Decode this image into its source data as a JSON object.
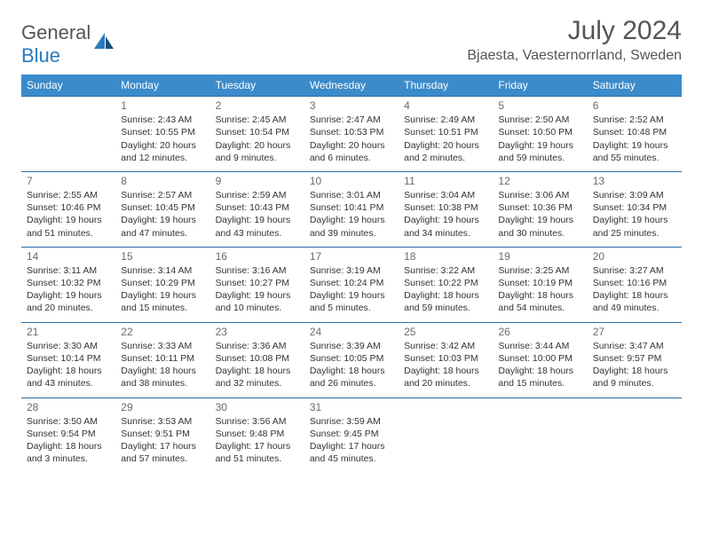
{
  "brand": {
    "part1": "General",
    "part2": "Blue"
  },
  "title": "July 2024",
  "location": "Bjaesta, Vaesternorrland, Sweden",
  "colors": {
    "header_bg": "#3b8bca",
    "header_text": "#ffffff",
    "cell_border": "#2a6ca8",
    "body_text": "#333333",
    "muted_text": "#6a6a6a",
    "brand_gray": "#555555",
    "brand_blue": "#2a7bbf"
  },
  "weekdays": [
    "Sunday",
    "Monday",
    "Tuesday",
    "Wednesday",
    "Thursday",
    "Friday",
    "Saturday"
  ],
  "weeks": [
    [
      null,
      {
        "day": "1",
        "sunrise": "Sunrise: 2:43 AM",
        "sunset": "Sunset: 10:55 PM",
        "daylight1": "Daylight: 20 hours",
        "daylight2": "and 12 minutes."
      },
      {
        "day": "2",
        "sunrise": "Sunrise: 2:45 AM",
        "sunset": "Sunset: 10:54 PM",
        "daylight1": "Daylight: 20 hours",
        "daylight2": "and 9 minutes."
      },
      {
        "day": "3",
        "sunrise": "Sunrise: 2:47 AM",
        "sunset": "Sunset: 10:53 PM",
        "daylight1": "Daylight: 20 hours",
        "daylight2": "and 6 minutes."
      },
      {
        "day": "4",
        "sunrise": "Sunrise: 2:49 AM",
        "sunset": "Sunset: 10:51 PM",
        "daylight1": "Daylight: 20 hours",
        "daylight2": "and 2 minutes."
      },
      {
        "day": "5",
        "sunrise": "Sunrise: 2:50 AM",
        "sunset": "Sunset: 10:50 PM",
        "daylight1": "Daylight: 19 hours",
        "daylight2": "and 59 minutes."
      },
      {
        "day": "6",
        "sunrise": "Sunrise: 2:52 AM",
        "sunset": "Sunset: 10:48 PM",
        "daylight1": "Daylight: 19 hours",
        "daylight2": "and 55 minutes."
      }
    ],
    [
      {
        "day": "7",
        "sunrise": "Sunrise: 2:55 AM",
        "sunset": "Sunset: 10:46 PM",
        "daylight1": "Daylight: 19 hours",
        "daylight2": "and 51 minutes."
      },
      {
        "day": "8",
        "sunrise": "Sunrise: 2:57 AM",
        "sunset": "Sunset: 10:45 PM",
        "daylight1": "Daylight: 19 hours",
        "daylight2": "and 47 minutes."
      },
      {
        "day": "9",
        "sunrise": "Sunrise: 2:59 AM",
        "sunset": "Sunset: 10:43 PM",
        "daylight1": "Daylight: 19 hours",
        "daylight2": "and 43 minutes."
      },
      {
        "day": "10",
        "sunrise": "Sunrise: 3:01 AM",
        "sunset": "Sunset: 10:41 PM",
        "daylight1": "Daylight: 19 hours",
        "daylight2": "and 39 minutes."
      },
      {
        "day": "11",
        "sunrise": "Sunrise: 3:04 AM",
        "sunset": "Sunset: 10:38 PM",
        "daylight1": "Daylight: 19 hours",
        "daylight2": "and 34 minutes."
      },
      {
        "day": "12",
        "sunrise": "Sunrise: 3:06 AM",
        "sunset": "Sunset: 10:36 PM",
        "daylight1": "Daylight: 19 hours",
        "daylight2": "and 30 minutes."
      },
      {
        "day": "13",
        "sunrise": "Sunrise: 3:09 AM",
        "sunset": "Sunset: 10:34 PM",
        "daylight1": "Daylight: 19 hours",
        "daylight2": "and 25 minutes."
      }
    ],
    [
      {
        "day": "14",
        "sunrise": "Sunrise: 3:11 AM",
        "sunset": "Sunset: 10:32 PM",
        "daylight1": "Daylight: 19 hours",
        "daylight2": "and 20 minutes."
      },
      {
        "day": "15",
        "sunrise": "Sunrise: 3:14 AM",
        "sunset": "Sunset: 10:29 PM",
        "daylight1": "Daylight: 19 hours",
        "daylight2": "and 15 minutes."
      },
      {
        "day": "16",
        "sunrise": "Sunrise: 3:16 AM",
        "sunset": "Sunset: 10:27 PM",
        "daylight1": "Daylight: 19 hours",
        "daylight2": "and 10 minutes."
      },
      {
        "day": "17",
        "sunrise": "Sunrise: 3:19 AM",
        "sunset": "Sunset: 10:24 PM",
        "daylight1": "Daylight: 19 hours",
        "daylight2": "and 5 minutes."
      },
      {
        "day": "18",
        "sunrise": "Sunrise: 3:22 AM",
        "sunset": "Sunset: 10:22 PM",
        "daylight1": "Daylight: 18 hours",
        "daylight2": "and 59 minutes."
      },
      {
        "day": "19",
        "sunrise": "Sunrise: 3:25 AM",
        "sunset": "Sunset: 10:19 PM",
        "daylight1": "Daylight: 18 hours",
        "daylight2": "and 54 minutes."
      },
      {
        "day": "20",
        "sunrise": "Sunrise: 3:27 AM",
        "sunset": "Sunset: 10:16 PM",
        "daylight1": "Daylight: 18 hours",
        "daylight2": "and 49 minutes."
      }
    ],
    [
      {
        "day": "21",
        "sunrise": "Sunrise: 3:30 AM",
        "sunset": "Sunset: 10:14 PM",
        "daylight1": "Daylight: 18 hours",
        "daylight2": "and 43 minutes."
      },
      {
        "day": "22",
        "sunrise": "Sunrise: 3:33 AM",
        "sunset": "Sunset: 10:11 PM",
        "daylight1": "Daylight: 18 hours",
        "daylight2": "and 38 minutes."
      },
      {
        "day": "23",
        "sunrise": "Sunrise: 3:36 AM",
        "sunset": "Sunset: 10:08 PM",
        "daylight1": "Daylight: 18 hours",
        "daylight2": "and 32 minutes."
      },
      {
        "day": "24",
        "sunrise": "Sunrise: 3:39 AM",
        "sunset": "Sunset: 10:05 PM",
        "daylight1": "Daylight: 18 hours",
        "daylight2": "and 26 minutes."
      },
      {
        "day": "25",
        "sunrise": "Sunrise: 3:42 AM",
        "sunset": "Sunset: 10:03 PM",
        "daylight1": "Daylight: 18 hours",
        "daylight2": "and 20 minutes."
      },
      {
        "day": "26",
        "sunrise": "Sunrise: 3:44 AM",
        "sunset": "Sunset: 10:00 PM",
        "daylight1": "Daylight: 18 hours",
        "daylight2": "and 15 minutes."
      },
      {
        "day": "27",
        "sunrise": "Sunrise: 3:47 AM",
        "sunset": "Sunset: 9:57 PM",
        "daylight1": "Daylight: 18 hours",
        "daylight2": "and 9 minutes."
      }
    ],
    [
      {
        "day": "28",
        "sunrise": "Sunrise: 3:50 AM",
        "sunset": "Sunset: 9:54 PM",
        "daylight1": "Daylight: 18 hours",
        "daylight2": "and 3 minutes."
      },
      {
        "day": "29",
        "sunrise": "Sunrise: 3:53 AM",
        "sunset": "Sunset: 9:51 PM",
        "daylight1": "Daylight: 17 hours",
        "daylight2": "and 57 minutes."
      },
      {
        "day": "30",
        "sunrise": "Sunrise: 3:56 AM",
        "sunset": "Sunset: 9:48 PM",
        "daylight1": "Daylight: 17 hours",
        "daylight2": "and 51 minutes."
      },
      {
        "day": "31",
        "sunrise": "Sunrise: 3:59 AM",
        "sunset": "Sunset: 9:45 PM",
        "daylight1": "Daylight: 17 hours",
        "daylight2": "and 45 minutes."
      },
      null,
      null,
      null
    ]
  ]
}
